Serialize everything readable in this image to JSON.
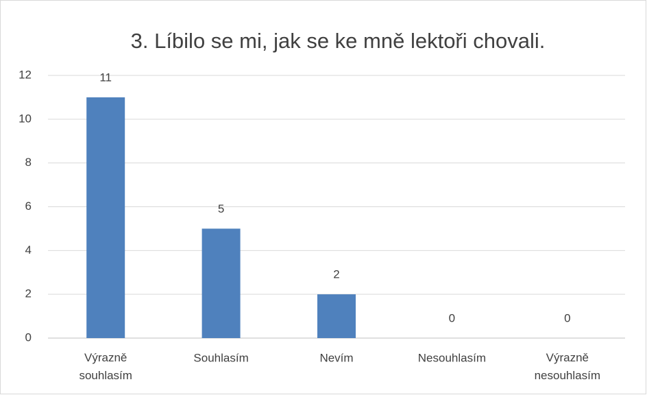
{
  "chart_data": {
    "type": "bar",
    "title": "3. Líbilo se mi, jak se ke mně lektoři chovali.",
    "categories": [
      "Výrazně souhlasím",
      "Souhlasím",
      "Nevím",
      "Nesouhlasím",
      "Výrazně nesouhlasím"
    ],
    "values": [
      11,
      5,
      2,
      0,
      0
    ],
    "color": "#4f81bd",
    "ylim": [
      0,
      12
    ],
    "yticks": [
      0,
      2,
      4,
      6,
      8,
      10,
      12
    ],
    "grid": true
  }
}
